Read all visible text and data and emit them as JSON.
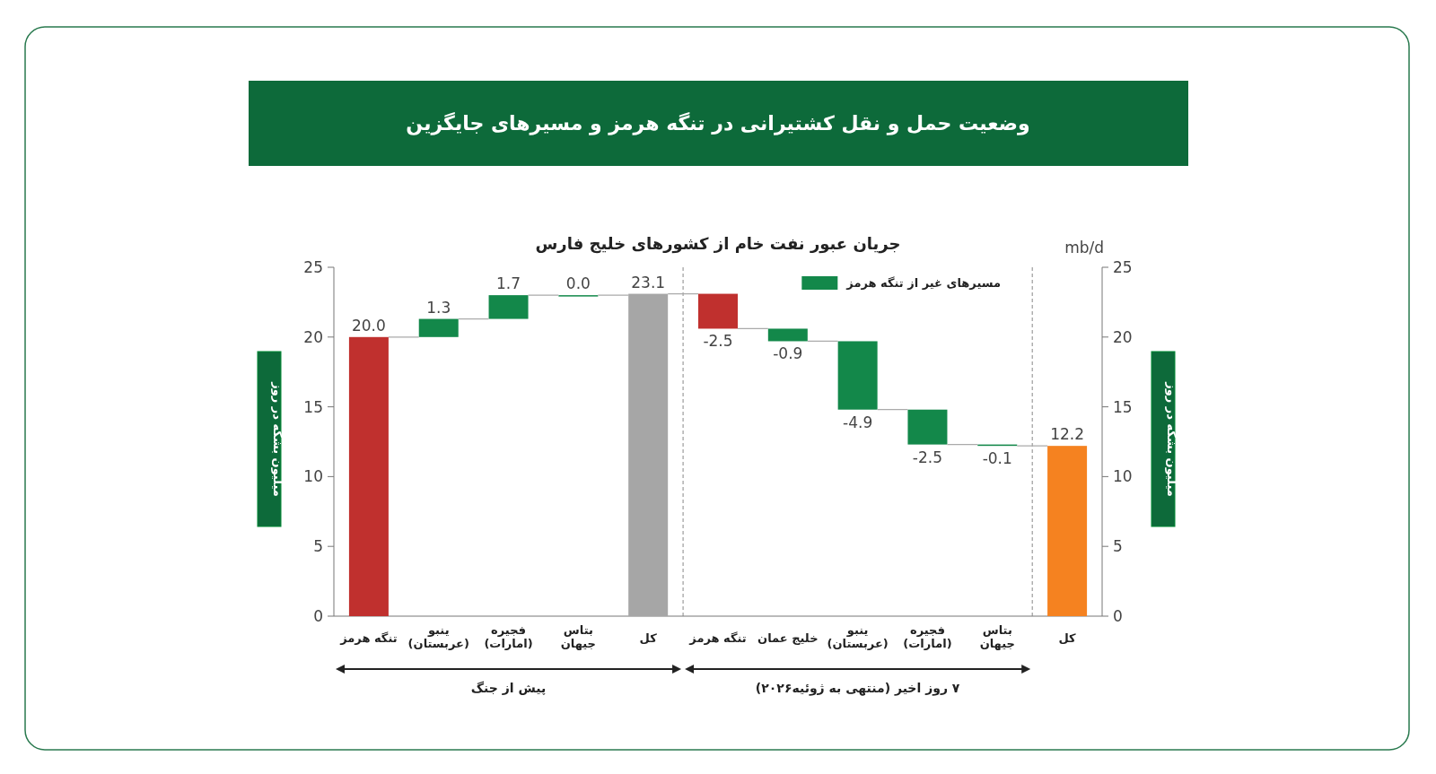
{
  "chart_data": {
    "type": "bar",
    "title": "وضعیت حمل و نقل کشتیرانی در تنگه هرمز و مسیرهای جایگزین",
    "subtitle": "جریان عبور نفت خام از کشورهای خلیج فارس",
    "ylabel": "میلیون بشکه در روز",
    "y2label": "میلیون بشکه در روز",
    "categories": [
      "تنگه هرمز",
      "ینبو\n(عربستان)",
      "فجیره\n(امارات)",
      "بتاس\nجیهان",
      "کل",
      "تنگه هرمز",
      "خلیج عمان",
      "ینبو\n(عربستان)",
      "فجیره\n(امارات)",
      "بتاس\nجیهان",
      "کل"
    ],
    "series": [
      {
        "colors": [
          "#c0302e",
          null,
          null,
          null,
          "#a6a6a6",
          "#c0302e",
          null,
          null,
          null,
          null,
          "#f58220"
        ],
        "base": [
          0,
          null,
          null,
          null,
          0,
          23.1,
          null,
          null,
          null,
          null,
          0
        ],
        "values": [
          20.0,
          null,
          null,
          null,
          23.1,
          -2.5,
          null,
          null,
          null,
          null,
          12.2
        ],
        "value_labels": [
          "20.0",
          null,
          null,
          null,
          "23.1",
          "-2.5",
          null,
          null,
          null,
          null,
          "12.2"
        ]
      },
      {
        "name": "مسیرهای غیر از تنگه هرمز",
        "color": "#13884a",
        "base": [
          null,
          20,
          21.3,
          23,
          null,
          null,
          20.6,
          19.7,
          14.8,
          12.3,
          null
        ],
        "values": [
          null,
          1.3,
          1.7,
          0.0,
          null,
          null,
          -0.9,
          -4.9,
          -2.5,
          -0.1,
          null
        ],
        "value_labels": [
          null,
          "1.3",
          "1.7",
          "0.0",
          null,
          null,
          "-0.9",
          "-4.9",
          "-2.5",
          "-0.1",
          null
        ]
      }
    ],
    "ylim": [
      0,
      25
    ],
    "yticks": [
      0,
      5,
      10,
      15,
      20,
      25
    ],
    "y2lim": [
      0,
      25
    ],
    "y2ticks": [
      0,
      5,
      10,
      15,
      20,
      25
    ],
    "legend": "top right",
    "annotations": [
      "mb/d",
      "پیش از جنگ",
      "۷ روز اخیر (منتهی به ژوئیه۲۰۲۶)"
    ]
  }
}
